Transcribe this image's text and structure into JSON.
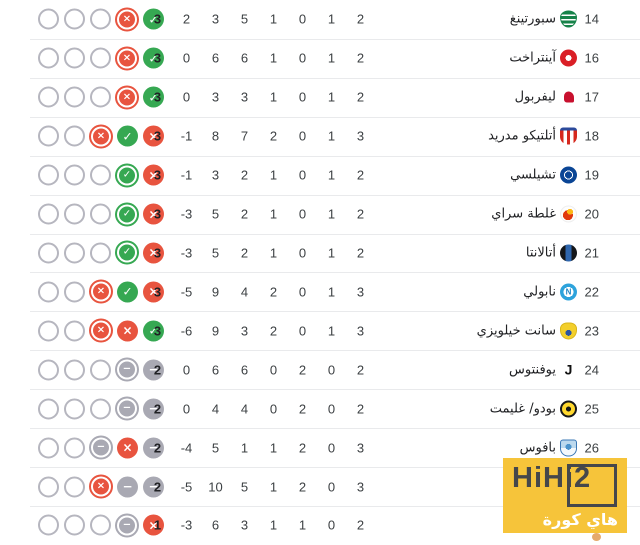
{
  "icons": {
    "win": "✓",
    "loss": "×",
    "draw": "−"
  },
  "colors": {
    "win": "#36a852",
    "loss": "#e8543f",
    "draw": "#a9a9b3",
    "empty_circle_border": "#b6b6bf",
    "separator": "#e9eaec",
    "watermark_bg": "#f6c43a",
    "watermark_text": "#45474b"
  },
  "watermark": {
    "title": "HiHi2",
    "subtitle": "هاي كورة"
  },
  "rows": [
    {
      "pos": "14",
      "name": "سبورتينغ",
      "team": "sporting",
      "stats": {
        "points": "3",
        "goal_diff": "2",
        "goals_against": "3",
        "goals_for": "5",
        "lost": "1",
        "drawn": "0",
        "won": "1",
        "played": "2"
      },
      "form": [
        "empty",
        "empty",
        "empty",
        "loss-ring",
        "win"
      ]
    },
    {
      "pos": "16",
      "name": "آينتراخت",
      "team": "eintracht",
      "stats": {
        "points": "3",
        "goal_diff": "0",
        "goals_against": "6",
        "goals_for": "6",
        "lost": "1",
        "drawn": "0",
        "won": "1",
        "played": "2"
      },
      "form": [
        "empty",
        "empty",
        "empty",
        "loss-ring",
        "win"
      ]
    },
    {
      "pos": "17",
      "name": "ليفربول",
      "team": "liverpool",
      "stats": {
        "points": "3",
        "goal_diff": "0",
        "goals_against": "3",
        "goals_for": "3",
        "lost": "1",
        "drawn": "0",
        "won": "1",
        "played": "2"
      },
      "form": [
        "empty",
        "empty",
        "empty",
        "loss-ring",
        "win"
      ]
    },
    {
      "pos": "18",
      "name": "أتلتيكو مدريد",
      "team": "atletico",
      "stats": {
        "points": "3",
        "goal_diff": "-1",
        "goals_against": "8",
        "goals_for": "7",
        "lost": "2",
        "drawn": "0",
        "won": "1",
        "played": "3"
      },
      "form": [
        "empty",
        "empty",
        "loss-ring",
        "win",
        "loss"
      ]
    },
    {
      "pos": "19",
      "name": "تشيلسي",
      "team": "chelsea",
      "stats": {
        "points": "3",
        "goal_diff": "-1",
        "goals_against": "3",
        "goals_for": "2",
        "lost": "1",
        "drawn": "0",
        "won": "1",
        "played": "2"
      },
      "form": [
        "empty",
        "empty",
        "empty",
        "win-ring",
        "loss"
      ]
    },
    {
      "pos": "20",
      "name": "غلطة سراي",
      "team": "galatasaray",
      "stats": {
        "points": "3",
        "goal_diff": "-3",
        "goals_against": "5",
        "goals_for": "2",
        "lost": "1",
        "drawn": "0",
        "won": "1",
        "played": "2"
      },
      "form": [
        "empty",
        "empty",
        "empty",
        "win-ring",
        "loss"
      ]
    },
    {
      "pos": "21",
      "name": "أتالانتا",
      "team": "atalanta",
      "stats": {
        "points": "3",
        "goal_diff": "-3",
        "goals_against": "5",
        "goals_for": "2",
        "lost": "1",
        "drawn": "0",
        "won": "1",
        "played": "2"
      },
      "form": [
        "empty",
        "empty",
        "empty",
        "win-ring",
        "loss"
      ]
    },
    {
      "pos": "22",
      "name": "نابولي",
      "team": "napoli",
      "stats": {
        "points": "3",
        "goal_diff": "-5",
        "goals_against": "9",
        "goals_for": "4",
        "lost": "2",
        "drawn": "0",
        "won": "1",
        "played": "3"
      },
      "form": [
        "empty",
        "empty",
        "loss-ring",
        "win",
        "loss"
      ]
    },
    {
      "pos": "23",
      "name": "سانت خيلويزي",
      "team": "usg",
      "stats": {
        "points": "3",
        "goal_diff": "-6",
        "goals_against": "9",
        "goals_for": "3",
        "lost": "2",
        "drawn": "0",
        "won": "1",
        "played": "3"
      },
      "form": [
        "empty",
        "empty",
        "loss-ring",
        "loss",
        "win"
      ]
    },
    {
      "pos": "24",
      "name": "يوفنتوس",
      "team": "juventus",
      "stats": {
        "points": "2",
        "goal_diff": "0",
        "goals_against": "6",
        "goals_for": "6",
        "lost": "0",
        "drawn": "2",
        "won": "0",
        "played": "2"
      },
      "form": [
        "empty",
        "empty",
        "empty",
        "draw-ring",
        "draw"
      ]
    },
    {
      "pos": "25",
      "name": "بودو/ غليمت",
      "team": "bodo",
      "stats": {
        "points": "2",
        "goal_diff": "0",
        "goals_against": "4",
        "goals_for": "4",
        "lost": "0",
        "drawn": "2",
        "won": "0",
        "played": "2"
      },
      "form": [
        "empty",
        "empty",
        "empty",
        "draw-ring",
        "draw"
      ]
    },
    {
      "pos": "26",
      "name": "بافوس",
      "team": "pafos",
      "stats": {
        "points": "2",
        "goal_diff": "-4",
        "goals_against": "5",
        "goals_for": "1",
        "lost": "1",
        "drawn": "2",
        "won": "0",
        "played": "3"
      },
      "form": [
        "empty",
        "empty",
        "draw-ring",
        "loss",
        "draw"
      ]
    },
    {
      "pos": "",
      "name": "",
      "team": "",
      "stats": {
        "points": "2",
        "goal_diff": "-5",
        "goals_against": "10",
        "goals_for": "5",
        "lost": "1",
        "drawn": "2",
        "won": "0",
        "played": "3"
      },
      "form": [
        "empty",
        "empty",
        "loss-ring",
        "draw",
        "draw"
      ],
      "covered": true
    },
    {
      "pos": "",
      "name": "",
      "team": "",
      "stats": {
        "points": "1",
        "goal_diff": "-3",
        "goals_against": "6",
        "goals_for": "3",
        "lost": "1",
        "drawn": "1",
        "won": "0",
        "played": "2"
      },
      "form": [
        "empty",
        "empty",
        "empty",
        "draw-ring",
        "loss"
      ],
      "covered": true
    }
  ]
}
